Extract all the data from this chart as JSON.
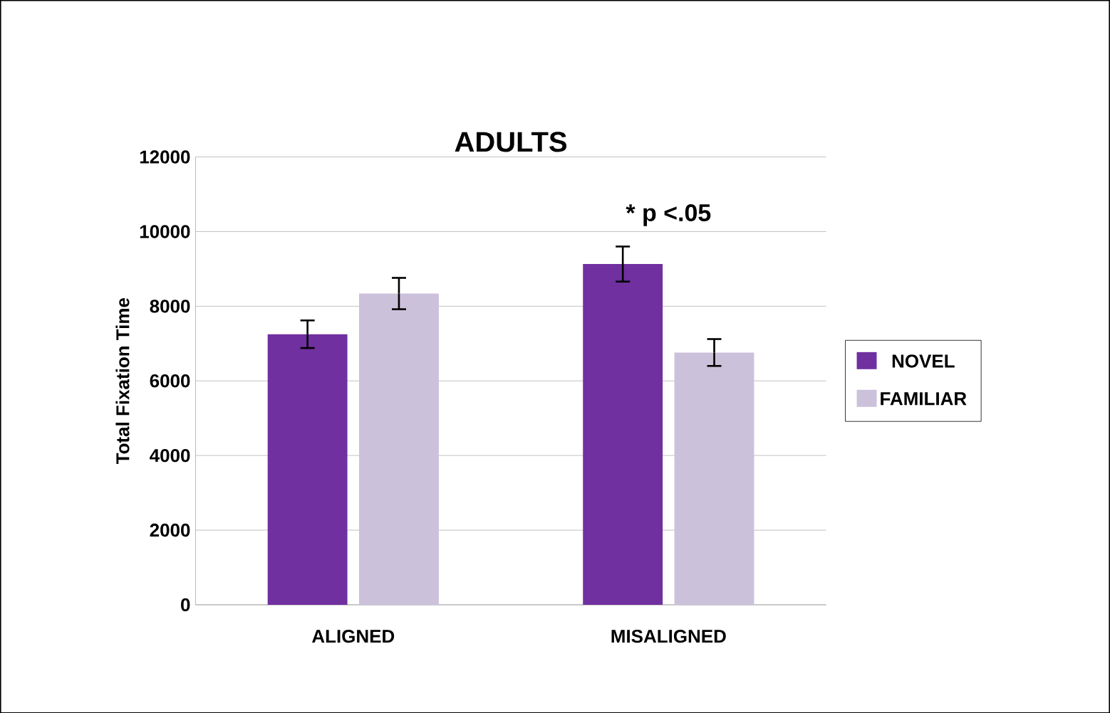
{
  "chart_data": {
    "type": "bar",
    "title": "ADULTS",
    "ylabel": "Total Fixation Time",
    "categories": [
      "ALIGNED",
      "MISALIGNED"
    ],
    "series": [
      {
        "name": "NOVEL",
        "color": "#7030a0",
        "values": [
          7250,
          9130
        ],
        "errors": [
          370,
          470
        ]
      },
      {
        "name": "FAMILIAR",
        "color": "#ccc1da",
        "values": [
          8340,
          6760
        ],
        "errors": [
          420,
          360
        ]
      }
    ],
    "ylim": [
      0,
      12000
    ],
    "yticks": [
      0,
      2000,
      4000,
      6000,
      8000,
      10000,
      12000
    ],
    "grid": "y",
    "legend": "right",
    "annotations": [
      "* p <.05"
    ]
  }
}
